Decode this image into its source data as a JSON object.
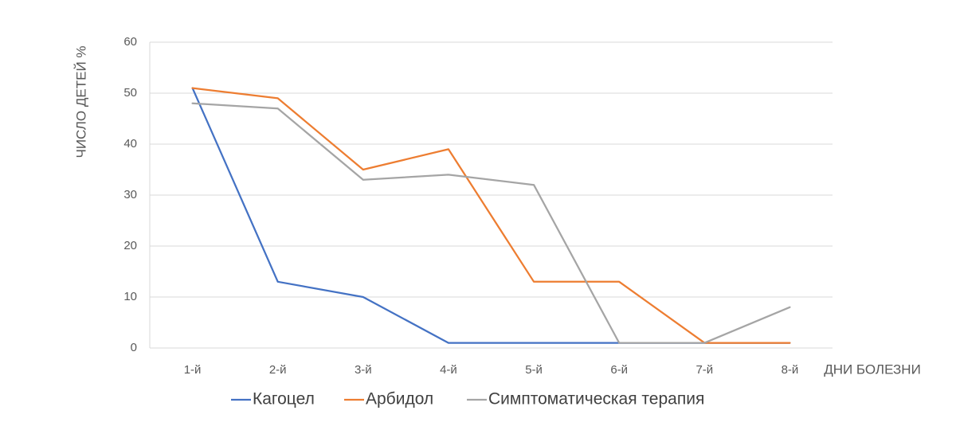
{
  "chart_data": {
    "type": "line",
    "categories": [
      "1-й",
      "2-й",
      "3-й",
      "4-й",
      "5-й",
      "6-й",
      "7-й",
      "8-й"
    ],
    "xlabel": "ДНИ БОЛЕЗНИ",
    "ylabel": "ЧИСЛО ДЕТЕЙ %",
    "ylim": [
      0,
      60
    ],
    "yticks": [
      "0",
      "10",
      "20",
      "30",
      "40",
      "50",
      "60"
    ],
    "grid": true,
    "legend_position": "bottom",
    "series": [
      {
        "name": "Кагоцел",
        "color": "#4472C4",
        "values": [
          51,
          13,
          10,
          1,
          1,
          1,
          1,
          1
        ]
      },
      {
        "name": "Арбидол",
        "color": "#ED7D31",
        "values": [
          51,
          49,
          35,
          39,
          13,
          13,
          1,
          1
        ]
      },
      {
        "name": "Симптоматическая терапия",
        "color": "#A5A5A5",
        "values": [
          48,
          47,
          33,
          34,
          32,
          1,
          1,
          8
        ]
      }
    ]
  }
}
